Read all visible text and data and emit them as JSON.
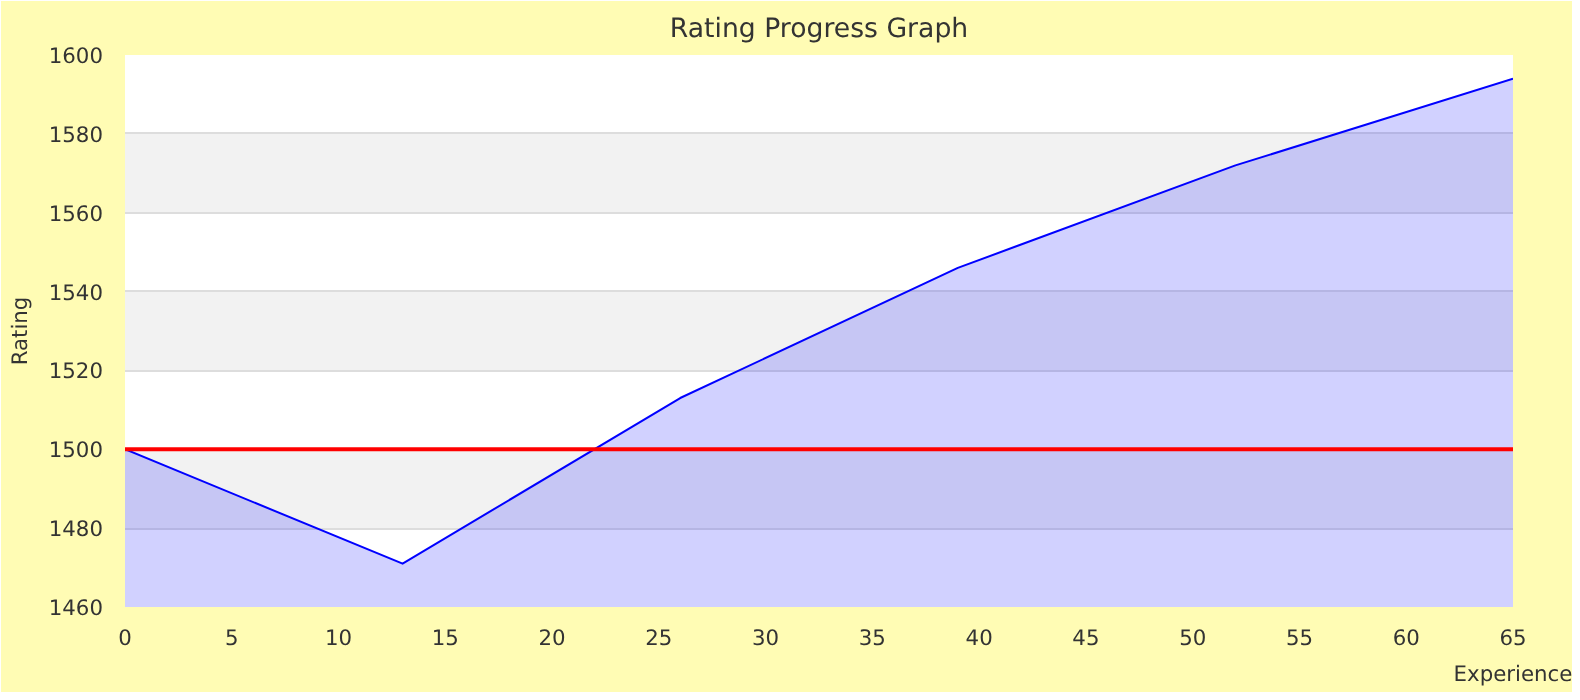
{
  "chart_data": {
    "type": "area",
    "title": "Rating Progress Graph",
    "xlabel": "Experience",
    "ylabel": "Rating",
    "x": [
      0,
      13,
      26,
      39,
      52,
      65
    ],
    "series": [
      {
        "color": "#0000ff",
        "values": [
          1500,
          1471,
          1513,
          1546,
          1572,
          1594
        ]
      }
    ],
    "xlim": [
      0,
      65
    ],
    "xticks": [
      0,
      5,
      10,
      15,
      20,
      25,
      30,
      35,
      40,
      45,
      50,
      55,
      60,
      65
    ],
    "ylim": [
      1460,
      1600
    ],
    "yticks": [
      1460,
      1480,
      1500,
      1520,
      1540,
      1560,
      1580,
      1600
    ],
    "grid": "y",
    "ref_lines": [
      {
        "axis": "y",
        "value": 1500,
        "color": "#ff0000"
      }
    ]
  }
}
